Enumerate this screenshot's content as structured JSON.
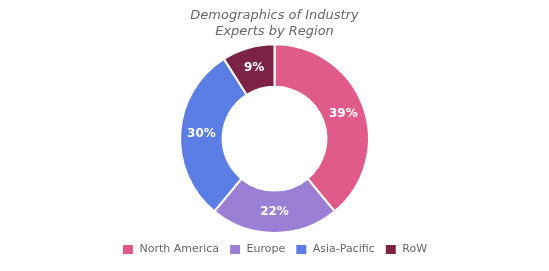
{
  "chart_data": {
    "type": "donut",
    "title": "Demographics of Industry\nExperts by Region",
    "categories": [
      "North America",
      "Europe",
      "Asia-Pacific",
      "RoW"
    ],
    "values": [
      39,
      22,
      30,
      9
    ],
    "value_labels": [
      "39%",
      "22%",
      "30%",
      "9%"
    ],
    "colors": [
      "#e05a8a",
      "#9b7fd4",
      "#5b7ee5",
      "#7b2245"
    ],
    "data_labels": true,
    "legend": "bottom"
  }
}
